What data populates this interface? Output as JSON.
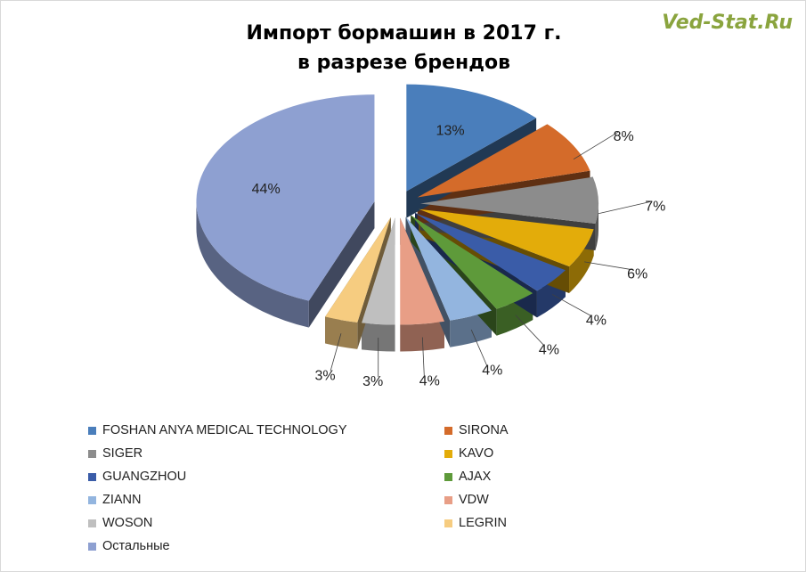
{
  "header": {
    "title_line1": "Импорт бормашин в 2017 г.",
    "title_line2": "в разрезе брендов",
    "watermark": "Ved-Stat.Ru"
  },
  "chart_data": {
    "type": "pie",
    "title": "Импорт бормашин в 2017 г. в разрезе брендов",
    "legend_position": "bottom",
    "slices": [
      {
        "name": "FOSHAN ANYA MEDICAL TECHNOLOGY",
        "value": 13,
        "label": "13%",
        "color": "#4a7ebb"
      },
      {
        "name": "SIRONA",
        "value": 8,
        "label": "8%",
        "color": "#d46b2a"
      },
      {
        "name": "SIGER",
        "value": 7,
        "label": "7%",
        "color": "#8c8c8c"
      },
      {
        "name": "KAVO",
        "value": 6,
        "label": "6%",
        "color": "#e3ac0a"
      },
      {
        "name": "GUANGZHOU",
        "value": 4,
        "label": "4%",
        "color": "#3a5ca8"
      },
      {
        "name": "AJAX",
        "value": 4,
        "label": "4%",
        "color": "#5e9a3a"
      },
      {
        "name": "ZIANN",
        "value": 4,
        "label": "4%",
        "color": "#93b5df"
      },
      {
        "name": "VDW",
        "value": 4,
        "label": "4%",
        "color": "#e89e86"
      },
      {
        "name": "WOSON",
        "value": 3,
        "label": "3%",
        "color": "#bfbfbf"
      },
      {
        "name": "LEGRIN",
        "value": 3,
        "label": "3%",
        "color": "#f6cc80"
      },
      {
        "name": "Остальные",
        "value": 44,
        "label": "44%",
        "color": "#8ea0d1"
      }
    ]
  }
}
